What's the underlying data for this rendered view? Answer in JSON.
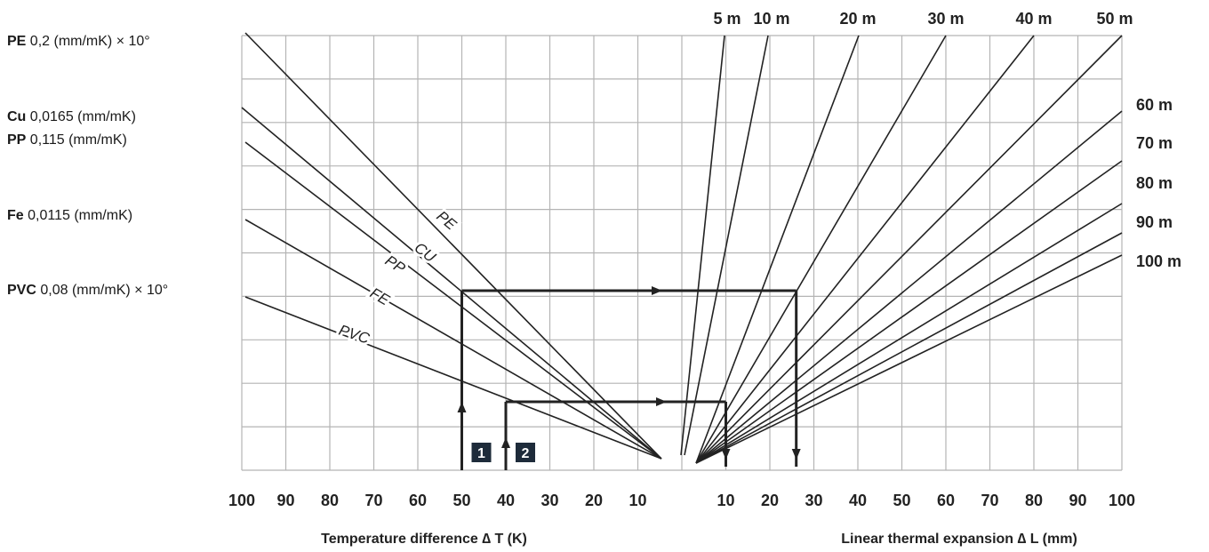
{
  "chart_data": {
    "type": "nomogram",
    "materials": [
      {
        "key": "pe",
        "code": "PE",
        "coef": "0,2 (mm/mK) × 10°",
        "curve_label": "PE"
      },
      {
        "key": "cu",
        "code": "Cu",
        "coef": "0,0165 (mm/mK)",
        "curve_label": "CU"
      },
      {
        "key": "pp",
        "code": "PP",
        "coef": "0,115 (mm/mK)",
        "curve_label": "PP"
      },
      {
        "key": "fe",
        "code": "Fe",
        "coef": "0,0115 (mm/mK)",
        "curve_label": "FE"
      },
      {
        "key": "pvc",
        "code": "PVC",
        "coef": "0,08 (mm/mK) × 10°",
        "curve_label": "PVC"
      }
    ],
    "left_axis": {
      "title": "Temperature difference ∆ T (K)",
      "ticks": [
        "100",
        "90",
        "80",
        "70",
        "60",
        "50",
        "40",
        "30",
        "20",
        "10"
      ]
    },
    "right_axis": {
      "title": "Linear thermal expansion ∆ L (mm)",
      "ticks": [
        "10",
        "20",
        "30",
        "40",
        "50",
        "60",
        "70",
        "80",
        "90",
        "100"
      ]
    },
    "pipe_lengths": [
      "5 m",
      "10 m",
      "20 m",
      "30 m",
      "40 m",
      "50 m",
      "60 m",
      "70 m",
      "80 m",
      "90 m",
      "100 m"
    ],
    "examples": [
      {
        "marker": "1",
        "delta_t": 50,
        "delta_l": 26
      },
      {
        "marker": "2",
        "delta_t": 40,
        "delta_l": 10
      }
    ],
    "colors": {
      "grid": "#b4b4b4",
      "line": "#222222",
      "marker_bg": "#1e2b3a",
      "marker_fg": "#ffffff"
    }
  }
}
